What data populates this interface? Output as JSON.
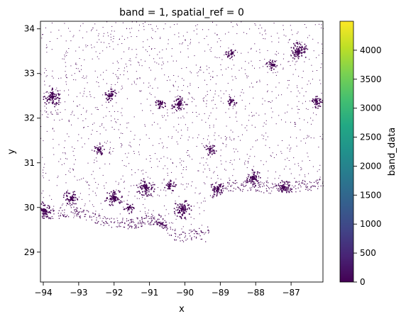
{
  "chart_data": {
    "type": "heatmap",
    "title": "band = 1, spatial_ref = 0",
    "xlabel": "x",
    "ylabel": "y",
    "xlim": [
      -94.08,
      -86.1
    ],
    "ylim": [
      28.33,
      34.17
    ],
    "x_ticks": [
      -94,
      -93,
      -92,
      -91,
      -90,
      -89,
      -88,
      -87
    ],
    "x_tick_labels": [
      "−94",
      "−93",
      "−92",
      "−91",
      "−90",
      "−89",
      "−88",
      "−87"
    ],
    "y_ticks": [
      29,
      30,
      31,
      32,
      33,
      34
    ],
    "y_tick_labels": [
      "29",
      "30",
      "31",
      "32",
      "33",
      "34"
    ],
    "colorbar": {
      "label": "band_data",
      "range": [
        0,
        4500
      ],
      "ticks": [
        0,
        500,
        1000,
        1500,
        2000,
        2500,
        3000,
        3500,
        4000
      ],
      "tick_labels": [
        "0",
        "500",
        "1000",
        "1500",
        "2000",
        "2500",
        "3000",
        "3500",
        "4000"
      ],
      "colormap": "viridis"
    },
    "grid": false,
    "pixel_color": "#440154",
    "coastline_lat_at_lon": [
      [
        -94.08,
        29.72
      ],
      [
        -93.5,
        29.76
      ],
      [
        -93.0,
        29.77
      ],
      [
        -92.5,
        29.62
      ],
      [
        -92.0,
        29.55
      ],
      [
        -91.6,
        29.5
      ],
      [
        -91.25,
        29.55
      ],
      [
        -91.0,
        29.62
      ],
      [
        -90.7,
        29.6
      ],
      [
        -90.45,
        29.35
      ],
      [
        -90.2,
        29.22
      ],
      [
        -89.9,
        29.25
      ],
      [
        -89.6,
        29.3
      ],
      [
        -89.4,
        29.22
      ],
      [
        -89.3,
        29.55
      ],
      [
        -89.3,
        30.18
      ],
      [
        -88.8,
        30.38
      ],
      [
        -88.2,
        30.35
      ],
      [
        -87.5,
        30.32
      ],
      [
        -86.1,
        30.4
      ]
    ],
    "population_clusters": [
      {
        "lon": -93.75,
        "lat": 32.48,
        "intensity": 1.0
      },
      {
        "lon": -92.12,
        "lat": 32.52,
        "intensity": 0.6
      },
      {
        "lon": -90.18,
        "lat": 32.32,
        "intensity": 0.8
      },
      {
        "lon": -88.7,
        "lat": 33.45,
        "intensity": 0.4
      },
      {
        "lon": -87.55,
        "lat": 33.2,
        "intensity": 0.5
      },
      {
        "lon": -86.8,
        "lat": 33.52,
        "intensity": 1.0
      },
      {
        "lon": -86.3,
        "lat": 32.38,
        "intensity": 0.6
      },
      {
        "lon": -92.45,
        "lat": 31.3,
        "intensity": 0.5
      },
      {
        "lon": -89.3,
        "lat": 31.32,
        "intensity": 0.5
      },
      {
        "lon": -88.7,
        "lat": 32.38,
        "intensity": 0.4
      },
      {
        "lon": -93.22,
        "lat": 30.22,
        "intensity": 0.8
      },
      {
        "lon": -92.02,
        "lat": 30.22,
        "intensity": 1.0
      },
      {
        "lon": -91.12,
        "lat": 30.45,
        "intensity": 1.0
      },
      {
        "lon": -90.08,
        "lat": 29.97,
        "intensity": 1.0
      },
      {
        "lon": -89.1,
        "lat": 30.42,
        "intensity": 0.7
      },
      {
        "lon": -88.08,
        "lat": 30.68,
        "intensity": 0.9
      },
      {
        "lon": -87.22,
        "lat": 30.45,
        "intensity": 0.8
      },
      {
        "lon": -90.72,
        "lat": 29.6,
        "intensity": 0.6
      },
      {
        "lon": -94.0,
        "lat": 29.95,
        "intensity": 0.8
      },
      {
        "lon": -90.7,
        "lat": 32.35,
        "intensity": 0.4
      },
      {
        "lon": -91.6,
        "lat": 30.0,
        "intensity": 0.4
      },
      {
        "lon": -90.45,
        "lat": 30.5,
        "intensity": 0.5
      }
    ]
  }
}
